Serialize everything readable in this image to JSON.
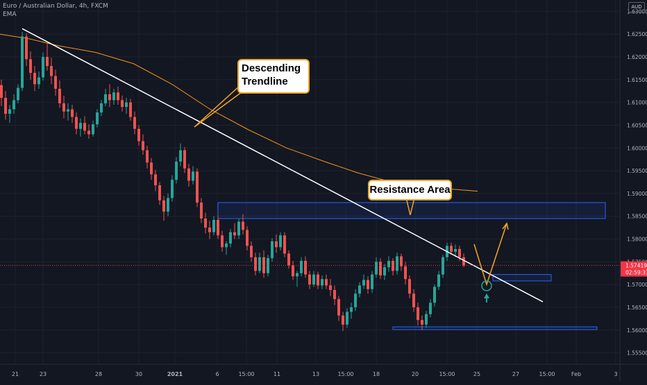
{
  "header": {
    "symbol_line": "Euro / Australian Dollar, 4h, FXCM",
    "indicator": "EMA"
  },
  "currency": "AUD",
  "last_price": "1.57419",
  "countdown": "02:59:33",
  "annotations": {
    "trendline": "Descending Trendline",
    "trendline_line1": "Descending",
    "trendline_line2": "Trendline",
    "resistance": "Resistance Area"
  },
  "colors": {
    "background": "#131722",
    "up": "#26a69a",
    "down": "#ef5350",
    "ema": "#f7931a",
    "zone": "#2962ff",
    "annotation_border": "#f5a623",
    "price_tag": "#f23645"
  },
  "chart_data": {
    "type": "candlestick",
    "ylim": [
      1.5525,
      1.6325
    ],
    "y_ticks": [
      "1.63000",
      "1.62500",
      "1.62000",
      "1.61500",
      "1.61000",
      "1.60500",
      "1.60000",
      "1.59500",
      "1.59000",
      "1.58500",
      "1.58000",
      "1.57500",
      "1.57000",
      "1.56500",
      "1.56000",
      "1.55500"
    ],
    "x_ticks": [
      "21",
      "23",
      "28",
      "30",
      "2021",
      "6",
      "15:00",
      "11",
      "13",
      "15:00",
      "18",
      "20",
      "15:00",
      "25",
      "27",
      "15:00",
      "Feb",
      "3"
    ],
    "ohlc": [
      [
        1.6138,
        1.615,
        1.6092,
        1.611
      ],
      [
        1.611,
        1.6125,
        1.6062,
        1.6075
      ],
      [
        1.6075,
        1.6095,
        1.6055,
        1.6085
      ],
      [
        1.6085,
        1.6118,
        1.6075,
        1.6105
      ],
      [
        1.6105,
        1.614,
        1.6098,
        1.6132
      ],
      [
        1.6132,
        1.6255,
        1.6125,
        1.6245
      ],
      [
        1.6245,
        1.6252,
        1.618,
        1.6195
      ],
      [
        1.6195,
        1.6212,
        1.615,
        1.6165
      ],
      [
        1.6165,
        1.618,
        1.6125,
        1.614
      ],
      [
        1.614,
        1.6168,
        1.613,
        1.6155
      ],
      [
        1.6155,
        1.621,
        1.6148,
        1.62
      ],
      [
        1.62,
        1.623,
        1.617,
        1.618
      ],
      [
        1.618,
        1.6198,
        1.614,
        1.6158
      ],
      [
        1.6158,
        1.6172,
        1.6115,
        1.613
      ],
      [
        1.613,
        1.6148,
        1.6088,
        1.6098
      ],
      [
        1.6098,
        1.6115,
        1.6065,
        1.608
      ],
      [
        1.608,
        1.6098,
        1.606,
        1.6085
      ],
      [
        1.6085,
        1.6095,
        1.6055,
        1.6068
      ],
      [
        1.6068,
        1.6078,
        1.603,
        1.6042
      ],
      [
        1.6042,
        1.6065,
        1.6025,
        1.6055
      ],
      [
        1.6055,
        1.607,
        1.603,
        1.6038
      ],
      [
        1.6038,
        1.6052,
        1.602,
        1.603
      ],
      [
        1.603,
        1.606,
        1.6025,
        1.6052
      ],
      [
        1.6052,
        1.6085,
        1.6045,
        1.6078
      ],
      [
        1.6078,
        1.6105,
        1.607,
        1.6098
      ],
      [
        1.6098,
        1.613,
        1.6092,
        1.6118
      ],
      [
        1.6118,
        1.614,
        1.609,
        1.6105
      ],
      [
        1.6105,
        1.613,
        1.6095,
        1.6122
      ],
      [
        1.6122,
        1.6135,
        1.6095,
        1.6105
      ],
      [
        1.6105,
        1.6115,
        1.608,
        1.609
      ],
      [
        1.609,
        1.611,
        1.6075,
        1.61
      ],
      [
        1.61,
        1.6108,
        1.606,
        1.6068
      ],
      [
        1.6068,
        1.608,
        1.603,
        1.6042
      ],
      [
        1.6042,
        1.605,
        1.6005,
        1.6015
      ],
      [
        1.6015,
        1.603,
        1.5985,
        1.5995
      ],
      [
        1.5995,
        1.6005,
        1.5955,
        1.5968
      ],
      [
        1.5968,
        1.5978,
        1.593,
        1.5942
      ],
      [
        1.5942,
        1.5952,
        1.5905,
        1.5918
      ],
      [
        1.5918,
        1.5925,
        1.5875,
        1.5885
      ],
      [
        1.5885,
        1.5895,
        1.584,
        1.586
      ],
      [
        1.586,
        1.59,
        1.585,
        1.589
      ],
      [
        1.589,
        1.594,
        1.5882,
        1.593
      ],
      [
        1.593,
        1.598,
        1.5922,
        1.597
      ],
      [
        1.597,
        1.601,
        1.596,
        1.5995
      ],
      [
        1.5995,
        1.6002,
        1.5945,
        1.5955
      ],
      [
        1.5955,
        1.5965,
        1.5915,
        1.5928
      ],
      [
        1.5928,
        1.596,
        1.592,
        1.5948
      ],
      [
        1.5948,
        1.5955,
        1.587,
        1.588
      ],
      [
        1.588,
        1.589,
        1.5835,
        1.5845
      ],
      [
        1.5845,
        1.5858,
        1.5812,
        1.5825
      ],
      [
        1.5825,
        1.584,
        1.58,
        1.5815
      ],
      [
        1.5815,
        1.585,
        1.5808,
        1.5842
      ],
      [
        1.5842,
        1.5852,
        1.58,
        1.5808
      ],
      [
        1.5808,
        1.5818,
        1.5772,
        1.5782
      ],
      [
        1.5782,
        1.5795,
        1.5765,
        1.579
      ],
      [
        1.579,
        1.5822,
        1.5782,
        1.5815
      ],
      [
        1.5815,
        1.5835,
        1.58,
        1.5808
      ],
      [
        1.5808,
        1.5845,
        1.58,
        1.5838
      ],
      [
        1.5838,
        1.5855,
        1.581,
        1.582
      ],
      [
        1.582,
        1.5828,
        1.5775,
        1.5785
      ],
      [
        1.5785,
        1.5795,
        1.575,
        1.576
      ],
      [
        1.576,
        1.577,
        1.572,
        1.573
      ],
      [
        1.573,
        1.577,
        1.5725,
        1.576
      ],
      [
        1.576,
        1.5775,
        1.5715,
        1.5725
      ],
      [
        1.5725,
        1.5765,
        1.5718,
        1.5758
      ],
      [
        1.5758,
        1.5802,
        1.575,
        1.5795
      ],
      [
        1.5795,
        1.581,
        1.577,
        1.5782
      ],
      [
        1.5782,
        1.5815,
        1.5775,
        1.5808
      ],
      [
        1.5808,
        1.5815,
        1.576,
        1.5768
      ],
      [
        1.5768,
        1.5775,
        1.5735,
        1.5742
      ],
      [
        1.5742,
        1.5752,
        1.571,
        1.5718
      ],
      [
        1.5718,
        1.573,
        1.5695,
        1.5725
      ],
      [
        1.5725,
        1.576,
        1.5718,
        1.5752
      ],
      [
        1.5752,
        1.5762,
        1.5715,
        1.5722
      ],
      [
        1.5722,
        1.573,
        1.569,
        1.57
      ],
      [
        1.57,
        1.573,
        1.5695,
        1.5722
      ],
      [
        1.5722,
        1.5728,
        1.569,
        1.5698
      ],
      [
        1.5698,
        1.572,
        1.569,
        1.5712
      ],
      [
        1.5712,
        1.5722,
        1.569,
        1.5698
      ],
      [
        1.5698,
        1.5712,
        1.5675,
        1.5688
      ],
      [
        1.5688,
        1.5698,
        1.5655,
        1.5668
      ],
      [
        1.5668,
        1.5675,
        1.562,
        1.5632
      ],
      [
        1.5632,
        1.564,
        1.5598,
        1.5612
      ],
      [
        1.5612,
        1.5648,
        1.5605,
        1.564
      ],
      [
        1.564,
        1.566,
        1.5625,
        1.565
      ],
      [
        1.565,
        1.569,
        1.5642,
        1.568
      ],
      [
        1.568,
        1.5705,
        1.5672,
        1.5698
      ],
      [
        1.5698,
        1.5722,
        1.569,
        1.571
      ],
      [
        1.571,
        1.5718,
        1.568,
        1.569
      ],
      [
        1.569,
        1.573,
        1.5682,
        1.5722
      ],
      [
        1.5722,
        1.576,
        1.5715,
        1.575
      ],
      [
        1.575,
        1.5758,
        1.5712,
        1.572
      ],
      [
        1.572,
        1.5745,
        1.571,
        1.5738
      ],
      [
        1.5738,
        1.5762,
        1.5728,
        1.5752
      ],
      [
        1.5752,
        1.5758,
        1.572,
        1.573
      ],
      [
        1.573,
        1.577,
        1.5722,
        1.5762
      ],
      [
        1.5762,
        1.5768,
        1.573,
        1.574
      ],
      [
        1.574,
        1.575,
        1.57,
        1.5712
      ],
      [
        1.5712,
        1.572,
        1.567,
        1.568
      ],
      [
        1.568,
        1.569,
        1.564,
        1.565
      ],
      [
        1.565,
        1.566,
        1.561,
        1.5622
      ],
      [
        1.5622,
        1.5632,
        1.56,
        1.5612
      ],
      [
        1.5612,
        1.5642,
        1.5605,
        1.5635
      ],
      [
        1.5635,
        1.5668,
        1.5628,
        1.566
      ],
      [
        1.566,
        1.57,
        1.5652,
        1.5695
      ],
      [
        1.5695,
        1.573,
        1.5688,
        1.5722
      ],
      [
        1.5722,
        1.5765,
        1.5715,
        1.576
      ],
      [
        1.576,
        1.5792,
        1.5752,
        1.5785
      ],
      [
        1.5785,
        1.5792,
        1.5765,
        1.5772
      ],
      [
        1.5772,
        1.5788,
        1.576,
        1.5778
      ],
      [
        1.5778,
        1.5785,
        1.5752,
        1.576
      ],
      [
        1.576,
        1.5768,
        1.5738,
        1.5742
      ]
    ],
    "ema": [
      [
        0,
        1.625
      ],
      [
        0.06,
        1.624
      ],
      [
        0.12,
        1.6225
      ],
      [
        0.2,
        1.621
      ],
      [
        0.28,
        1.6185
      ],
      [
        0.36,
        1.614
      ],
      [
        0.44,
        1.6085
      ],
      [
        0.52,
        1.604
      ],
      [
        0.6,
        1.6
      ],
      [
        0.68,
        1.597
      ],
      [
        0.75,
        1.5945
      ],
      [
        0.82,
        1.5925
      ],
      [
        0.88,
        1.5915
      ],
      [
        1.0,
        1.5905
      ]
    ],
    "trendline": {
      "from_index": 5,
      "from_price": 1.6262,
      "to_index": 130,
      "to_price": 1.5662
    },
    "zones": [
      {
        "from_index": 52,
        "to_index": 145,
        "top": 1.588,
        "bottom": 1.5845
      },
      {
        "from_index": 118,
        "to_index": 132,
        "top": 1.5722,
        "bottom": 1.5708
      },
      {
        "from_index": 94,
        "to_index": 143,
        "top": 1.5607,
        "bottom": 1.5601
      }
    ]
  }
}
